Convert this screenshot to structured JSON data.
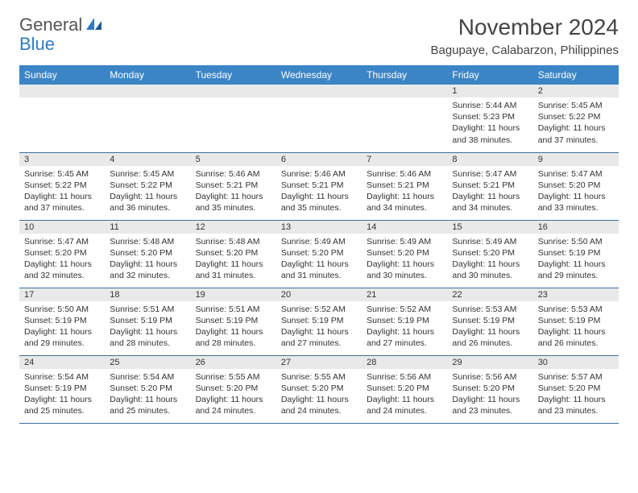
{
  "logo": {
    "part1": "General",
    "part2": "Blue"
  },
  "title": "November 2024",
  "location": "Bagupaye, Calabarzon, Philippines",
  "colors": {
    "header_bg": "#3b85c6",
    "header_text": "#ffffff",
    "daynum_bg": "#e9e9e9",
    "row_border": "#3b6fa0",
    "logo_blue": "#2f7ac0",
    "logo_gray": "#555555",
    "body_text": "#333333"
  },
  "weekdays": [
    "Sunday",
    "Monday",
    "Tuesday",
    "Wednesday",
    "Thursday",
    "Friday",
    "Saturday"
  ],
  "weeks": [
    [
      {
        "n": "",
        "sr": "",
        "ss": "",
        "dl": ""
      },
      {
        "n": "",
        "sr": "",
        "ss": "",
        "dl": ""
      },
      {
        "n": "",
        "sr": "",
        "ss": "",
        "dl": ""
      },
      {
        "n": "",
        "sr": "",
        "ss": "",
        "dl": ""
      },
      {
        "n": "",
        "sr": "",
        "ss": "",
        "dl": ""
      },
      {
        "n": "1",
        "sr": "Sunrise: 5:44 AM",
        "ss": "Sunset: 5:23 PM",
        "dl": "Daylight: 11 hours and 38 minutes."
      },
      {
        "n": "2",
        "sr": "Sunrise: 5:45 AM",
        "ss": "Sunset: 5:22 PM",
        "dl": "Daylight: 11 hours and 37 minutes."
      }
    ],
    [
      {
        "n": "3",
        "sr": "Sunrise: 5:45 AM",
        "ss": "Sunset: 5:22 PM",
        "dl": "Daylight: 11 hours and 37 minutes."
      },
      {
        "n": "4",
        "sr": "Sunrise: 5:45 AM",
        "ss": "Sunset: 5:22 PM",
        "dl": "Daylight: 11 hours and 36 minutes."
      },
      {
        "n": "5",
        "sr": "Sunrise: 5:46 AM",
        "ss": "Sunset: 5:21 PM",
        "dl": "Daylight: 11 hours and 35 minutes."
      },
      {
        "n": "6",
        "sr": "Sunrise: 5:46 AM",
        "ss": "Sunset: 5:21 PM",
        "dl": "Daylight: 11 hours and 35 minutes."
      },
      {
        "n": "7",
        "sr": "Sunrise: 5:46 AM",
        "ss": "Sunset: 5:21 PM",
        "dl": "Daylight: 11 hours and 34 minutes."
      },
      {
        "n": "8",
        "sr": "Sunrise: 5:47 AM",
        "ss": "Sunset: 5:21 PM",
        "dl": "Daylight: 11 hours and 34 minutes."
      },
      {
        "n": "9",
        "sr": "Sunrise: 5:47 AM",
        "ss": "Sunset: 5:20 PM",
        "dl": "Daylight: 11 hours and 33 minutes."
      }
    ],
    [
      {
        "n": "10",
        "sr": "Sunrise: 5:47 AM",
        "ss": "Sunset: 5:20 PM",
        "dl": "Daylight: 11 hours and 32 minutes."
      },
      {
        "n": "11",
        "sr": "Sunrise: 5:48 AM",
        "ss": "Sunset: 5:20 PM",
        "dl": "Daylight: 11 hours and 32 minutes."
      },
      {
        "n": "12",
        "sr": "Sunrise: 5:48 AM",
        "ss": "Sunset: 5:20 PM",
        "dl": "Daylight: 11 hours and 31 minutes."
      },
      {
        "n": "13",
        "sr": "Sunrise: 5:49 AM",
        "ss": "Sunset: 5:20 PM",
        "dl": "Daylight: 11 hours and 31 minutes."
      },
      {
        "n": "14",
        "sr": "Sunrise: 5:49 AM",
        "ss": "Sunset: 5:20 PM",
        "dl": "Daylight: 11 hours and 30 minutes."
      },
      {
        "n": "15",
        "sr": "Sunrise: 5:49 AM",
        "ss": "Sunset: 5:20 PM",
        "dl": "Daylight: 11 hours and 30 minutes."
      },
      {
        "n": "16",
        "sr": "Sunrise: 5:50 AM",
        "ss": "Sunset: 5:19 PM",
        "dl": "Daylight: 11 hours and 29 minutes."
      }
    ],
    [
      {
        "n": "17",
        "sr": "Sunrise: 5:50 AM",
        "ss": "Sunset: 5:19 PM",
        "dl": "Daylight: 11 hours and 29 minutes."
      },
      {
        "n": "18",
        "sr": "Sunrise: 5:51 AM",
        "ss": "Sunset: 5:19 PM",
        "dl": "Daylight: 11 hours and 28 minutes."
      },
      {
        "n": "19",
        "sr": "Sunrise: 5:51 AM",
        "ss": "Sunset: 5:19 PM",
        "dl": "Daylight: 11 hours and 28 minutes."
      },
      {
        "n": "20",
        "sr": "Sunrise: 5:52 AM",
        "ss": "Sunset: 5:19 PM",
        "dl": "Daylight: 11 hours and 27 minutes."
      },
      {
        "n": "21",
        "sr": "Sunrise: 5:52 AM",
        "ss": "Sunset: 5:19 PM",
        "dl": "Daylight: 11 hours and 27 minutes."
      },
      {
        "n": "22",
        "sr": "Sunrise: 5:53 AM",
        "ss": "Sunset: 5:19 PM",
        "dl": "Daylight: 11 hours and 26 minutes."
      },
      {
        "n": "23",
        "sr": "Sunrise: 5:53 AM",
        "ss": "Sunset: 5:19 PM",
        "dl": "Daylight: 11 hours and 26 minutes."
      }
    ],
    [
      {
        "n": "24",
        "sr": "Sunrise: 5:54 AM",
        "ss": "Sunset: 5:19 PM",
        "dl": "Daylight: 11 hours and 25 minutes."
      },
      {
        "n": "25",
        "sr": "Sunrise: 5:54 AM",
        "ss": "Sunset: 5:20 PM",
        "dl": "Daylight: 11 hours and 25 minutes."
      },
      {
        "n": "26",
        "sr": "Sunrise: 5:55 AM",
        "ss": "Sunset: 5:20 PM",
        "dl": "Daylight: 11 hours and 24 minutes."
      },
      {
        "n": "27",
        "sr": "Sunrise: 5:55 AM",
        "ss": "Sunset: 5:20 PM",
        "dl": "Daylight: 11 hours and 24 minutes."
      },
      {
        "n": "28",
        "sr": "Sunrise: 5:56 AM",
        "ss": "Sunset: 5:20 PM",
        "dl": "Daylight: 11 hours and 24 minutes."
      },
      {
        "n": "29",
        "sr": "Sunrise: 5:56 AM",
        "ss": "Sunset: 5:20 PM",
        "dl": "Daylight: 11 hours and 23 minutes."
      },
      {
        "n": "30",
        "sr": "Sunrise: 5:57 AM",
        "ss": "Sunset: 5:20 PM",
        "dl": "Daylight: 11 hours and 23 minutes."
      }
    ]
  ]
}
